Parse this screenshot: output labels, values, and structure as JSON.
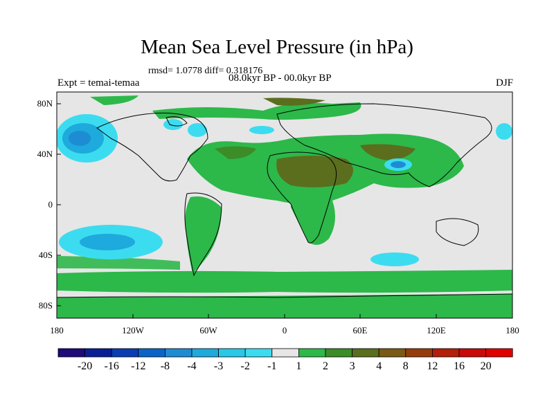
{
  "title": "Mean Sea Level Pressure (in hPa)",
  "stats": "rmsd= 1.0778 diff= 0.318176",
  "experiment": "Expt = temai-temaa",
  "period": "08.0kyr BP - 00.0kyr BP",
  "season": "DJF",
  "lat_labels": [
    "80N",
    "40N",
    "0",
    "40S",
    "80S"
  ],
  "lon_labels": [
    "180",
    "120W",
    "60W",
    "0",
    "60E",
    "120E",
    "180"
  ],
  "colorbar": {
    "colors": [
      "#1e0a78",
      "#0a1e96",
      "#0a3cb4",
      "#0a64c8",
      "#1e8cd2",
      "#1eaadc",
      "#28c8e6",
      "#3cdcf0",
      "#e6e6e6",
      "#2db84a",
      "#3c8c28",
      "#5a6e1e",
      "#7a5a14",
      "#963c0a",
      "#b41e0a",
      "#c80a0a",
      "#e10000"
    ],
    "labels": [
      "-20",
      "-16",
      "-12",
      "-8",
      "-4",
      "-3",
      "-2",
      "-1",
      "1",
      "2",
      "3",
      "4",
      "8",
      "12",
      "16",
      "20"
    ]
  }
}
